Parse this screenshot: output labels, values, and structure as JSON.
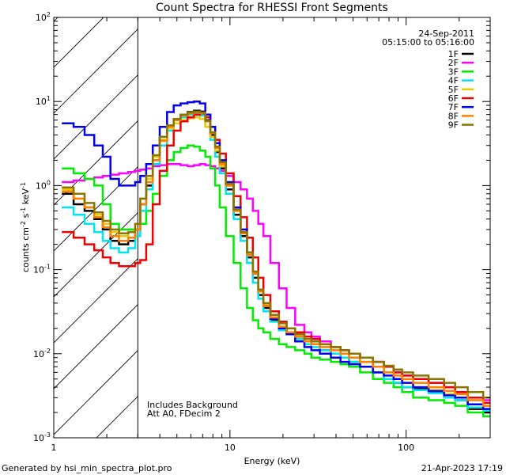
{
  "chart_data": {
    "type": "line",
    "title": "Count Spectra for RHESSI Front Segments",
    "xlabel": "Energy (keV)",
    "ylabel": "counts cm^-2 s^-1 keV^-1",
    "xscale": "log",
    "yscale": "log",
    "xlim": [
      1,
      300
    ],
    "ylim": [
      0.001,
      100
    ],
    "x_ticks": [
      {
        "value": 1,
        "label": "1"
      },
      {
        "value": 10,
        "label": "10"
      },
      {
        "value": 100,
        "label": "100"
      }
    ],
    "y_ticks": [
      {
        "value": 0.001,
        "base": "10",
        "exp": "-3"
      },
      {
        "value": 0.01,
        "base": "10",
        "exp": "-2"
      },
      {
        "value": 0.1,
        "base": "10",
        "exp": "-1"
      },
      {
        "value": 1,
        "base": "10",
        "exp": "0"
      },
      {
        "value": 10,
        "base": "10",
        "exp": "1"
      },
      {
        "value": 100,
        "base": "10",
        "exp": "2"
      }
    ],
    "hatched_region_max_energy": 3,
    "date": "24-Sep-2011",
    "time_range": "05:15:00 to 05:16:00",
    "annotations": [
      "Includes Background",
      "Att A0, FDecim 2"
    ],
    "series": [
      {
        "name": "1F",
        "color": "#000000",
        "x": [
          1.2,
          1.4,
          1.6,
          1.8,
          2.0,
          2.2,
          2.5,
          2.8,
          3.0,
          3.2,
          3.5,
          3.8,
          4.2,
          4.6,
          5.0,
          5.5,
          6.0,
          6.5,
          7.0,
          7.5,
          8.0,
          8.5,
          9.0,
          10,
          11,
          12,
          13,
          14,
          15,
          16,
          18,
          20,
          22,
          25,
          28,
          30,
          35,
          40,
          45,
          50,
          60,
          70,
          80,
          90,
          100,
          120,
          150,
          180,
          200,
          250,
          300
        ],
        "y": [
          0.8,
          0.6,
          0.5,
          0.4,
          0.3,
          0.22,
          0.2,
          0.22,
          0.3,
          0.6,
          1.0,
          2.0,
          3.5,
          5.0,
          6.0,
          7.0,
          7.5,
          7.8,
          7.6,
          6.0,
          4.0,
          2.5,
          1.6,
          0.9,
          0.45,
          0.25,
          0.14,
          0.08,
          0.05,
          0.035,
          0.025,
          0.02,
          0.018,
          0.015,
          0.014,
          0.013,
          0.011,
          0.01,
          0.009,
          0.008,
          0.007,
          0.006,
          0.005,
          0.0045,
          0.004,
          0.0038,
          0.0035,
          0.003,
          0.0028,
          0.0022,
          0.002
        ]
      },
      {
        "name": "2F",
        "color": "#ff00ff",
        "x": [
          1.2,
          1.4,
          1.6,
          1.8,
          2.0,
          2.2,
          2.5,
          2.8,
          3.0,
          3.2,
          3.5,
          3.8,
          4.2,
          4.6,
          5.0,
          5.5,
          6.0,
          6.5,
          7.0,
          7.5,
          8.0,
          8.5,
          9.0,
          10,
          11,
          12,
          13,
          14,
          15,
          16,
          18,
          20,
          22,
          25,
          28,
          30,
          35,
          40,
          45,
          50,
          60,
          70,
          80,
          90,
          100,
          120,
          150,
          180,
          200,
          250,
          300
        ],
        "y": [
          1.1,
          1.15,
          1.2,
          1.25,
          1.3,
          1.35,
          1.4,
          1.45,
          1.5,
          1.55,
          1.6,
          1.7,
          1.75,
          1.8,
          1.8,
          1.75,
          1.7,
          1.75,
          1.8,
          1.75,
          1.7,
          1.6,
          1.5,
          1.3,
          1.1,
          0.9,
          0.7,
          0.5,
          0.35,
          0.25,
          0.12,
          0.06,
          0.035,
          0.022,
          0.018,
          0.016,
          0.014,
          0.012,
          0.011,
          0.01,
          0.009,
          0.008,
          0.007,
          0.006,
          0.0055,
          0.005,
          0.0045,
          0.004,
          0.0035,
          0.003,
          0.0028
        ]
      },
      {
        "name": "3F",
        "color": "#00ee00",
        "x": [
          1.2,
          1.4,
          1.6,
          1.8,
          2.0,
          2.2,
          2.5,
          2.8,
          3.0,
          3.2,
          3.5,
          3.8,
          4.2,
          4.6,
          5.0,
          5.5,
          6.0,
          6.5,
          7.0,
          7.5,
          8.0,
          8.5,
          9.0,
          10,
          11,
          12,
          13,
          14,
          15,
          16,
          18,
          20,
          22,
          25,
          28,
          30,
          35,
          40,
          45,
          50,
          60,
          70,
          80,
          90,
          100,
          120,
          150,
          180,
          200,
          250,
          300
        ],
        "y": [
          1.6,
          1.4,
          1.2,
          1.0,
          0.6,
          0.35,
          0.3,
          0.3,
          0.3,
          0.35,
          0.5,
          0.8,
          1.3,
          2.0,
          2.5,
          2.8,
          3.0,
          2.9,
          2.6,
          2.2,
          1.6,
          1.0,
          0.55,
          0.25,
          0.12,
          0.06,
          0.035,
          0.025,
          0.02,
          0.018,
          0.015,
          0.013,
          0.012,
          0.011,
          0.01,
          0.009,
          0.0085,
          0.008,
          0.0075,
          0.007,
          0.006,
          0.005,
          0.0045,
          0.004,
          0.0035,
          0.003,
          0.0028,
          0.0026,
          0.0024,
          0.002,
          0.0018
        ]
      },
      {
        "name": "4F",
        "color": "#00e5ee",
        "x": [
          1.2,
          1.4,
          1.6,
          1.8,
          2.0,
          2.2,
          2.5,
          2.8,
          3.0,
          3.2,
          3.5,
          3.8,
          4.2,
          4.6,
          5.0,
          5.5,
          6.0,
          6.5,
          7.0,
          7.5,
          8.0,
          8.5,
          9.0,
          10,
          11,
          12,
          13,
          14,
          15,
          16,
          18,
          20,
          22,
          25,
          28,
          30,
          35,
          40,
          45,
          50,
          60,
          70,
          80,
          90,
          100,
          120,
          150,
          180,
          200,
          250,
          300
        ],
        "y": [
          0.55,
          0.45,
          0.35,
          0.28,
          0.22,
          0.18,
          0.16,
          0.18,
          0.25,
          0.5,
          0.9,
          1.8,
          3.0,
          4.5,
          5.5,
          6.5,
          7.0,
          7.2,
          6.8,
          5.0,
          3.5,
          2.2,
          1.4,
          0.8,
          0.4,
          0.22,
          0.12,
          0.07,
          0.045,
          0.032,
          0.024,
          0.019,
          0.017,
          0.015,
          0.013,
          0.012,
          0.011,
          0.01,
          0.009,
          0.008,
          0.007,
          0.006,
          0.005,
          0.0045,
          0.004,
          0.0037,
          0.0034,
          0.003,
          0.0028,
          0.0023,
          0.0021
        ]
      },
      {
        "name": "5F",
        "color": "#eec900",
        "x": [
          1.2,
          1.4,
          1.6,
          1.8,
          2.0,
          2.2,
          2.5,
          2.8,
          3.0,
          3.2,
          3.5,
          3.8,
          4.2,
          4.6,
          5.0,
          5.5,
          6.0,
          6.5,
          7.0,
          7.5,
          8.0,
          8.5,
          9.0,
          10,
          11,
          12,
          13,
          14,
          15,
          16,
          18,
          20,
          22,
          25,
          28,
          30,
          35,
          40,
          45,
          50,
          60,
          70,
          80,
          90,
          100,
          120,
          150,
          180,
          200,
          250,
          300
        ],
        "y": [
          0.9,
          0.7,
          0.55,
          0.45,
          0.35,
          0.28,
          0.25,
          0.28,
          0.35,
          0.7,
          1.2,
          2.2,
          3.5,
          4.8,
          5.5,
          6.0,
          6.3,
          6.5,
          6.2,
          5.0,
          3.8,
          2.6,
          1.7,
          1.0,
          0.5,
          0.28,
          0.15,
          0.09,
          0.055,
          0.038,
          0.027,
          0.021,
          0.018,
          0.016,
          0.014,
          0.013,
          0.012,
          0.011,
          0.01,
          0.009,
          0.008,
          0.007,
          0.006,
          0.005,
          0.0045,
          0.004,
          0.0037,
          0.0033,
          0.003,
          0.0025,
          0.0022
        ]
      },
      {
        "name": "6F",
        "color": "#ee0000",
        "x": [
          1.2,
          1.4,
          1.6,
          1.8,
          2.0,
          2.2,
          2.5,
          2.8,
          3.0,
          3.2,
          3.5,
          3.8,
          4.2,
          4.6,
          5.0,
          5.5,
          6.0,
          6.5,
          7.0,
          7.5,
          8.0,
          8.5,
          9.0,
          10,
          11,
          12,
          13,
          14,
          15,
          16,
          18,
          20,
          22,
          25,
          28,
          30,
          35,
          40,
          45,
          50,
          60,
          70,
          80,
          90,
          100,
          120,
          150,
          180,
          200,
          250,
          300
        ],
        "y": [
          0.28,
          0.24,
          0.2,
          0.17,
          0.14,
          0.12,
          0.11,
          0.11,
          0.12,
          0.13,
          0.2,
          0.6,
          1.5,
          3.0,
          4.5,
          5.8,
          6.5,
          7.0,
          7.2,
          6.5,
          5.0,
          3.5,
          2.4,
          1.4,
          0.75,
          0.42,
          0.24,
          0.14,
          0.08,
          0.05,
          0.032,
          0.024,
          0.02,
          0.018,
          0.016,
          0.015,
          0.013,
          0.012,
          0.011,
          0.01,
          0.009,
          0.008,
          0.007,
          0.006,
          0.0055,
          0.005,
          0.0045,
          0.004,
          0.0035,
          0.003,
          0.0026
        ]
      },
      {
        "name": "7F",
        "color": "#0000ee",
        "x": [
          1.2,
          1.4,
          1.6,
          1.8,
          2.0,
          2.2,
          2.5,
          2.8,
          3.0,
          3.2,
          3.5,
          3.8,
          4.2,
          4.6,
          5.0,
          5.5,
          6.0,
          6.5,
          7.0,
          7.5,
          8.0,
          8.5,
          9.0,
          10,
          11,
          12,
          13,
          14,
          15,
          16,
          18,
          20,
          22,
          25,
          28,
          30,
          35,
          40,
          45,
          50,
          60,
          70,
          80,
          90,
          100,
          120,
          150,
          180,
          200,
          250,
          300
        ],
        "y": [
          5.5,
          5.0,
          4.0,
          3.0,
          2.2,
          1.2,
          1.0,
          1.0,
          1.1,
          1.3,
          1.8,
          3.0,
          5.0,
          7.5,
          9.0,
          9.5,
          9.8,
          10.0,
          9.5,
          7.0,
          5.0,
          3.2,
          2.0,
          1.1,
          0.55,
          0.3,
          0.16,
          0.09,
          0.055,
          0.037,
          0.026,
          0.02,
          0.017,
          0.014,
          0.012,
          0.011,
          0.01,
          0.009,
          0.008,
          0.0075,
          0.007,
          0.006,
          0.0055,
          0.005,
          0.0045,
          0.004,
          0.0036,
          0.0032,
          0.003,
          0.0025,
          0.0022
        ]
      },
      {
        "name": "8F",
        "color": "#ff7f00",
        "x": [
          1.2,
          1.4,
          1.6,
          1.8,
          2.0,
          2.2,
          2.5,
          2.8,
          3.0,
          3.2,
          3.5,
          3.8,
          4.2,
          4.6,
          5.0,
          5.5,
          6.0,
          6.5,
          7.0,
          7.5,
          8.0,
          8.5,
          9.0,
          10,
          11,
          12,
          13,
          14,
          15,
          16,
          18,
          20,
          22,
          25,
          28,
          30,
          35,
          40,
          45,
          50,
          60,
          70,
          80,
          90,
          100,
          120,
          150,
          180,
          200,
          250,
          300
        ],
        "y": [
          0.85,
          0.7,
          0.55,
          0.42,
          0.32,
          0.25,
          0.22,
          0.24,
          0.3,
          0.6,
          1.1,
          2.0,
          3.4,
          5.0,
          6.0,
          6.8,
          7.2,
          7.5,
          7.3,
          5.8,
          4.2,
          2.8,
          1.8,
          1.0,
          0.5,
          0.27,
          0.15,
          0.09,
          0.055,
          0.037,
          0.027,
          0.021,
          0.018,
          0.016,
          0.014,
          0.013,
          0.012,
          0.011,
          0.01,
          0.009,
          0.008,
          0.007,
          0.006,
          0.0055,
          0.005,
          0.0045,
          0.004,
          0.0036,
          0.0033,
          0.0028,
          0.0024
        ]
      },
      {
        "name": "9F",
        "color": "#8b7500",
        "x": [
          1.2,
          1.4,
          1.6,
          1.8,
          2.0,
          2.2,
          2.5,
          2.8,
          3.0,
          3.2,
          3.5,
          3.8,
          4.2,
          4.6,
          5.0,
          5.5,
          6.0,
          6.5,
          7.0,
          7.5,
          8.0,
          8.5,
          9.0,
          10,
          11,
          12,
          13,
          14,
          15,
          16,
          18,
          20,
          22,
          25,
          28,
          30,
          35,
          40,
          45,
          50,
          60,
          70,
          80,
          90,
          100,
          120,
          150,
          180,
          200,
          250,
          300
        ],
        "y": [
          0.95,
          0.8,
          0.62,
          0.48,
          0.38,
          0.3,
          0.27,
          0.28,
          0.35,
          0.7,
          1.3,
          2.3,
          3.8,
          5.2,
          6.2,
          7.0,
          7.4,
          7.6,
          7.4,
          5.9,
          4.3,
          2.9,
          1.9,
          1.05,
          0.52,
          0.28,
          0.16,
          0.095,
          0.058,
          0.04,
          0.029,
          0.023,
          0.02,
          0.017,
          0.015,
          0.014,
          0.013,
          0.012,
          0.011,
          0.01,
          0.009,
          0.008,
          0.0072,
          0.0065,
          0.006,
          0.0055,
          0.005,
          0.0045,
          0.004,
          0.0035,
          0.003
        ]
      }
    ]
  },
  "footer": {
    "generated_by": "Generated by hsi_min_spectra_plot.pro",
    "timestamp": "21-Apr-2023 17:19"
  }
}
